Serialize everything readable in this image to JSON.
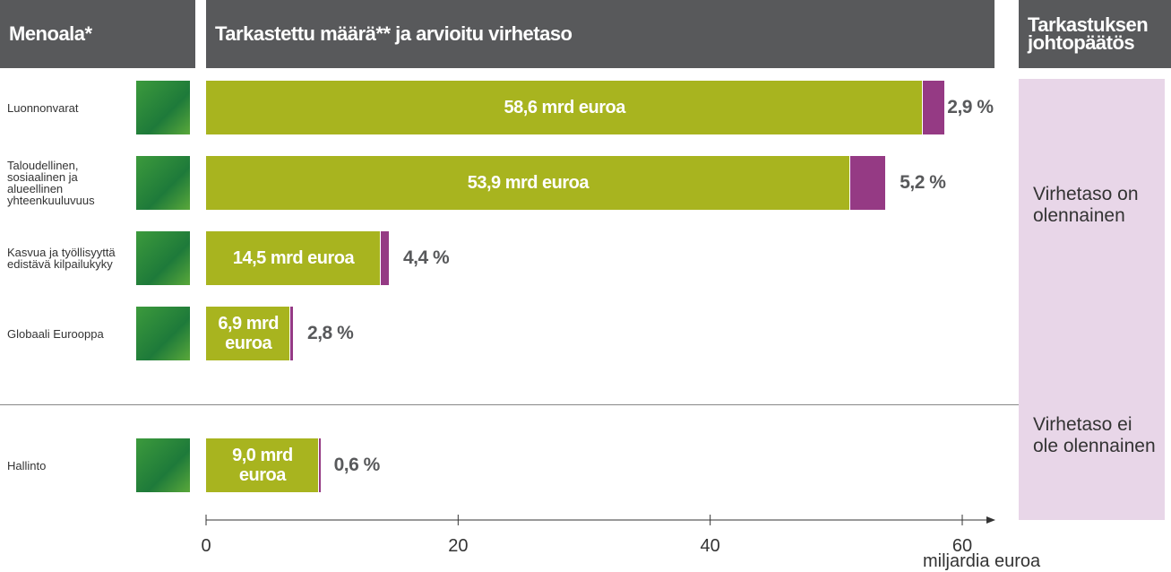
{
  "chart_data": {
    "type": "bar",
    "headers": [
      "Menoala*",
      "Tarkastettu määrä** ja arvioitu virhetaso",
      "Tarkastuksen johtopäätös"
    ],
    "categories": [
      "Luonnonvarat",
      "Taloudellinen, sosiaalinen ja alueellinen yhteenkuuluvuus",
      "Kasvua ja työllisyyttä edistävä kilpailukyky",
      "Globaali Eurooppa",
      "Hallinto"
    ],
    "values": [
      58.6,
      53.9,
      14.5,
      6.9,
      9.0
    ],
    "value_labels": [
      "58,6 mrd euroa",
      "53,9 mrd euroa",
      "14,5 mrd euroa",
      "6,9 mrd euroa",
      "9,0 mrd euroa"
    ],
    "error_rates": [
      2.9,
      5.2,
      4.4,
      2.8,
      0.6
    ],
    "error_labels": [
      "2,9 %",
      "5,2 %",
      "4,4 %",
      "2,8 %",
      "0,6 %"
    ],
    "conclusions": [
      "Virhetaso on olennainen",
      "Virhetaso ei ole olennainen"
    ],
    "color": "#a8b41f",
    "error_color": "#953a84",
    "xlabel": "miljardia euroa",
    "xlim": [
      0,
      60
    ],
    "xticks": [
      0,
      20,
      40,
      60
    ]
  }
}
